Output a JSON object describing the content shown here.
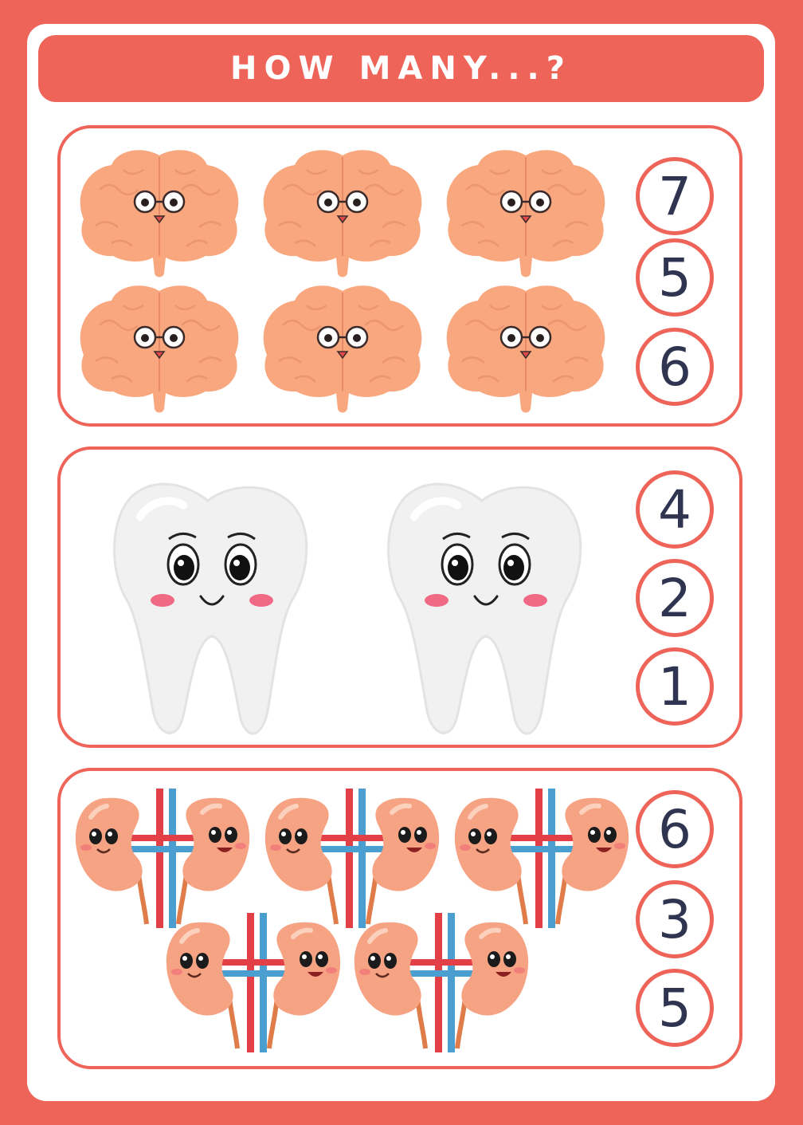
{
  "title": "HOW MANY...?",
  "colors": {
    "accent": "#ef6459",
    "brain": "#f9a77f",
    "tooth": "#f1f1f1",
    "kidney": "#f6a384",
    "vein": "#4a9fd0",
    "artery": "#e23f46",
    "digits": "#2f3550"
  },
  "questions": [
    {
      "subject": "brain",
      "count": 6,
      "options": [
        "7",
        "5",
        "6"
      ]
    },
    {
      "subject": "tooth",
      "count": 2,
      "options": [
        "4",
        "2",
        "1"
      ]
    },
    {
      "subject": "kidneys",
      "count": 5,
      "options": [
        "6",
        "3",
        "5"
      ]
    }
  ]
}
